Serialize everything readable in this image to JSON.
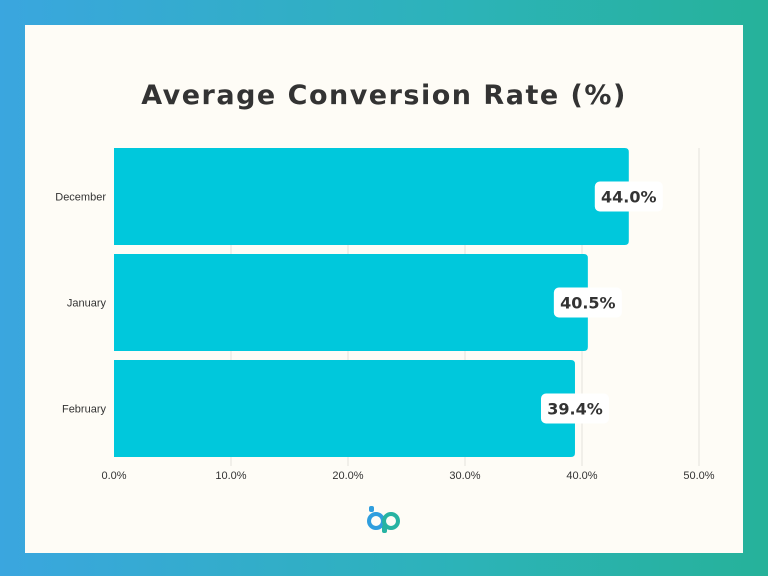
{
  "chart_data": {
    "type": "bar",
    "orientation": "horizontal",
    "title": "Average Conversion Rate (%)",
    "categories": [
      "December",
      "January",
      "February"
    ],
    "values": [
      44.0,
      40.5,
      39.4
    ],
    "data_labels": [
      "44.0%",
      "40.5%",
      "39.4%"
    ],
    "xlim": [
      0,
      50
    ],
    "x_ticks": [
      "0.0%",
      "10.0%",
      "20.0%",
      "30.0%",
      "40.0%",
      "50.0%"
    ],
    "xlabel": "",
    "ylabel": "",
    "grid": true,
    "legend": "none",
    "bar_color": "#00c8dc"
  },
  "colors": {
    "background_gradient_start": "#3aa6df",
    "background_gradient_end": "#26b29a",
    "card": "#fefcf6",
    "text": "#333333",
    "logo_blue": "#2f9ede",
    "logo_teal": "#27b3a2"
  },
  "logo": {
    "icon": "bp-logo-icon"
  }
}
